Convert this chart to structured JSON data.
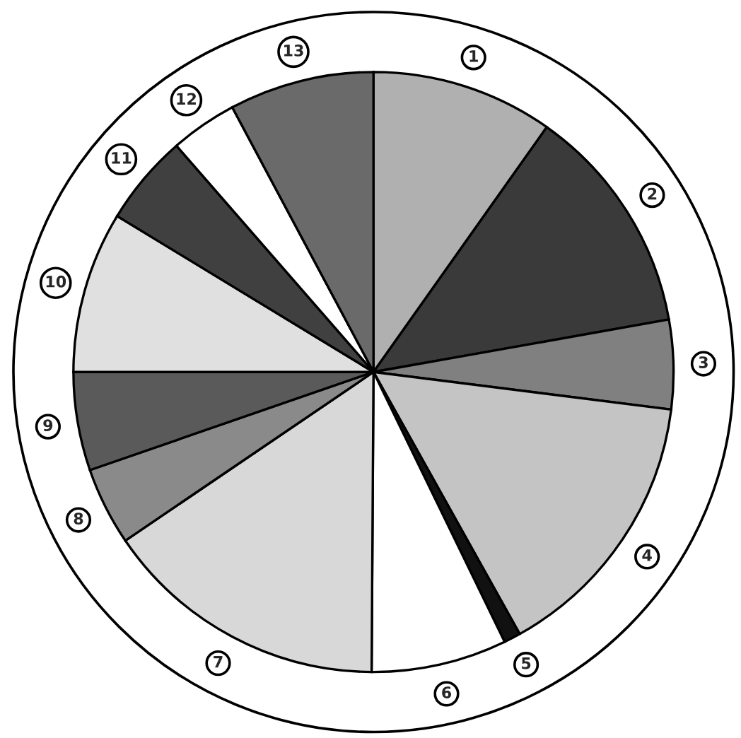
{
  "chart_data": {
    "type": "pie",
    "categories": [
      "1",
      "2",
      "3",
      "4",
      "5",
      "6",
      "7",
      "8",
      "9",
      "10",
      "11",
      "12",
      "13"
    ],
    "values": [
      9.8,
      12.4,
      4.8,
      14.9,
      0.9,
      7.3,
      15.4,
      4.2,
      5.3,
      8.7,
      4.9,
      3.6,
      7.8
    ],
    "colors": [
      "#b0b0b0",
      "#3a3a3a",
      "#808080",
      "#c4c4c4",
      "#111111",
      "#ffffff",
      "#d8d8d8",
      "#8a8a8a",
      "#5a5a5a",
      "#e0e0e0",
      "#404040",
      "#ffffff",
      "#6a6a6a"
    ],
    "legend": false
  }
}
